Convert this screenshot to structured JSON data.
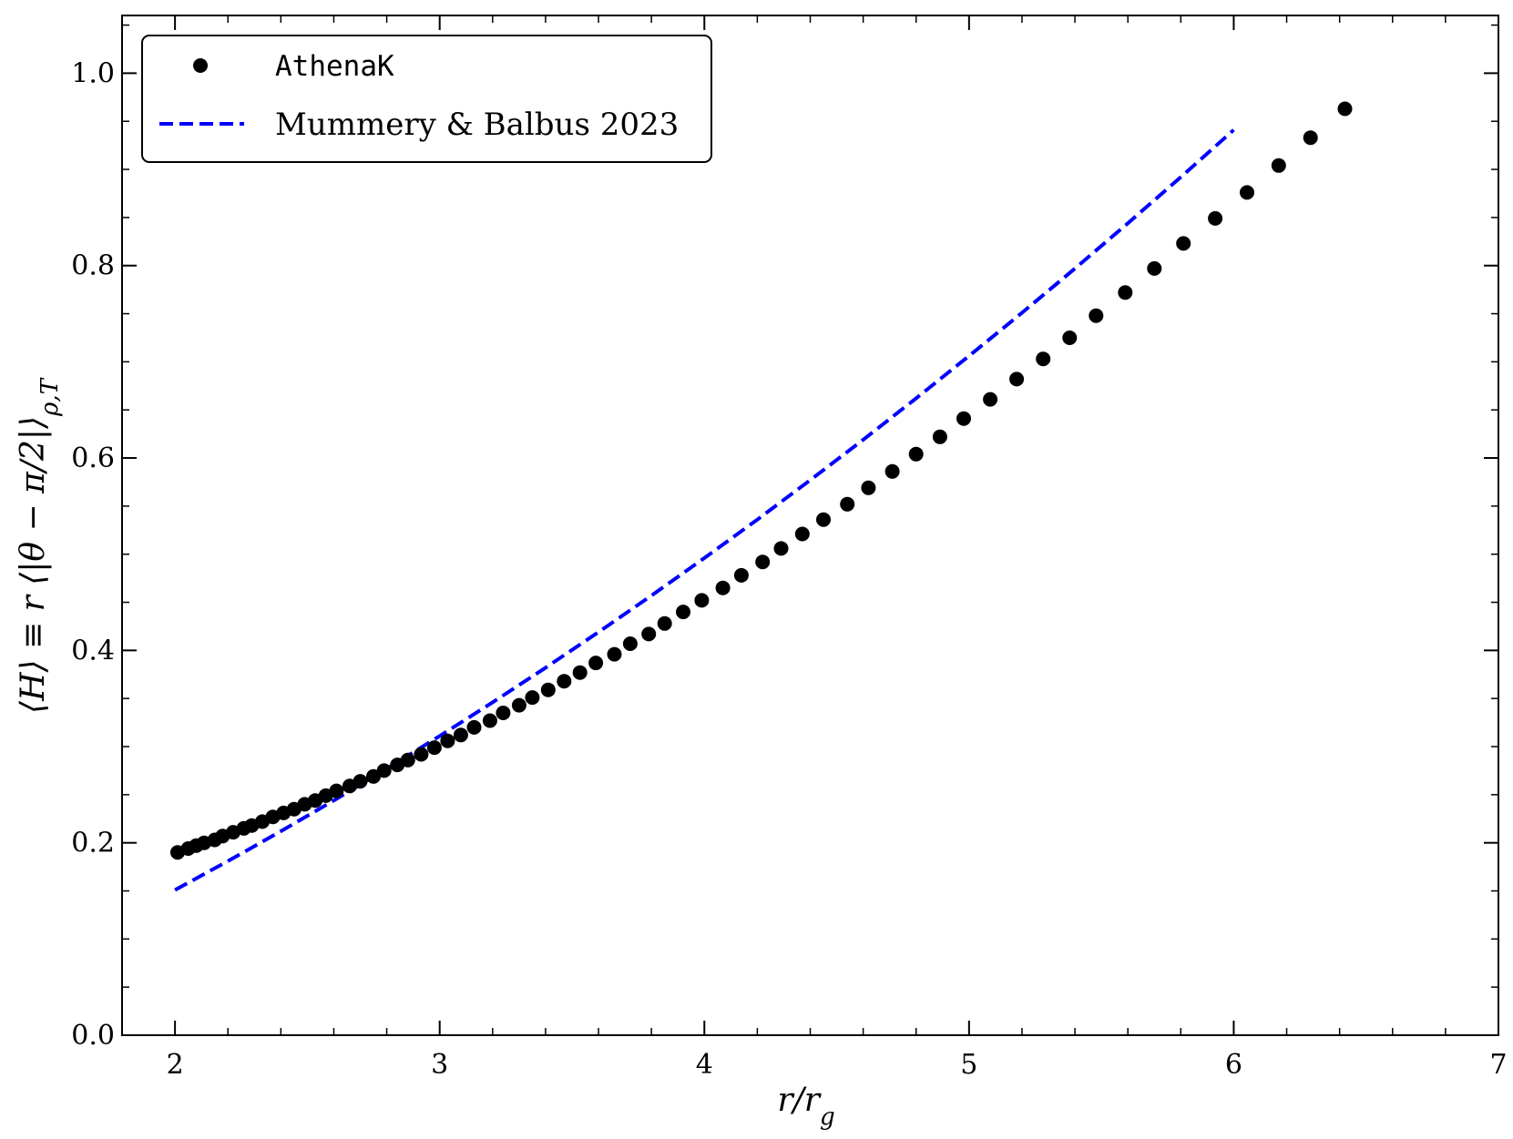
{
  "chart_data": {
    "type": "scatter",
    "xlabel": "r/r_g",
    "ylabel": "⟨H⟩ ≡ r ⟨|θ − π/2|⟩_{ρ,T}",
    "xlim": [
      1.8,
      7
    ],
    "ylim": [
      0.0,
      1.06
    ],
    "xticks": [
      2,
      3,
      4,
      5,
      6,
      7
    ],
    "xtick_labels": [
      "2",
      "3",
      "4",
      "5",
      "6",
      "7"
    ],
    "yticks": [
      0.0,
      0.2,
      0.4,
      0.6,
      0.8,
      1.0
    ],
    "ytick_labels": [
      "0.0",
      "0.2",
      "0.4",
      "0.6",
      "0.8",
      "1.0"
    ],
    "grid": false,
    "legend_position": "top-left",
    "series": [
      {
        "name": "AthenaK",
        "kind": "scatter",
        "color": "#000000",
        "x": [
          2.01,
          2.05,
          2.08,
          2.11,
          2.15,
          2.18,
          2.22,
          2.26,
          2.29,
          2.33,
          2.37,
          2.41,
          2.45,
          2.49,
          2.53,
          2.57,
          2.61,
          2.66,
          2.7,
          2.75,
          2.79,
          2.84,
          2.88,
          2.93,
          2.98,
          3.03,
          3.08,
          3.13,
          3.19,
          3.24,
          3.3,
          3.35,
          3.41,
          3.47,
          3.53,
          3.59,
          3.66,
          3.72,
          3.79,
          3.85,
          3.92,
          3.99,
          4.07,
          4.14,
          4.22,
          4.29,
          4.37,
          4.45,
          4.54,
          4.62,
          4.71,
          4.8,
          4.89,
          4.98,
          5.08,
          5.18,
          5.28,
          5.38,
          5.48,
          5.59,
          5.7,
          5.81,
          5.93,
          6.05,
          6.17,
          6.29,
          6.42
        ],
        "y": [
          0.19,
          0.194,
          0.197,
          0.2,
          0.203,
          0.207,
          0.211,
          0.215,
          0.218,
          0.222,
          0.227,
          0.231,
          0.235,
          0.24,
          0.244,
          0.249,
          0.254,
          0.259,
          0.264,
          0.269,
          0.275,
          0.281,
          0.286,
          0.292,
          0.299,
          0.306,
          0.312,
          0.32,
          0.327,
          0.335,
          0.343,
          0.351,
          0.359,
          0.368,
          0.377,
          0.387,
          0.396,
          0.407,
          0.417,
          0.428,
          0.44,
          0.452,
          0.465,
          0.478,
          0.492,
          0.506,
          0.521,
          0.536,
          0.552,
          0.569,
          0.586,
          0.604,
          0.622,
          0.641,
          0.661,
          0.682,
          0.703,
          0.725,
          0.748,
          0.772,
          0.797,
          0.823,
          0.849,
          0.876,
          0.904,
          0.933,
          0.963
        ]
      },
      {
        "name": "Mummery & Balbus 2023",
        "kind": "line",
        "color": "#0000ff",
        "dash": "dashed",
        "x": [
          2.0,
          2.2,
          2.4,
          2.6,
          2.8,
          3.0,
          3.2,
          3.4,
          3.6,
          3.8,
          4.0,
          4.2,
          4.4,
          4.6,
          4.8,
          5.0,
          5.2,
          5.4,
          5.6,
          5.8,
          6.0
        ],
        "y": [
          0.151,
          0.181,
          0.212,
          0.244,
          0.277,
          0.311,
          0.346,
          0.382,
          0.419,
          0.457,
          0.496,
          0.536,
          0.577,
          0.619,
          0.662,
          0.706,
          0.751,
          0.797,
          0.844,
          0.892,
          0.941
        ]
      }
    ]
  },
  "legend": {
    "athenak_label": "AthenaK",
    "mummery_label": "Mummery & Balbus 2023"
  }
}
